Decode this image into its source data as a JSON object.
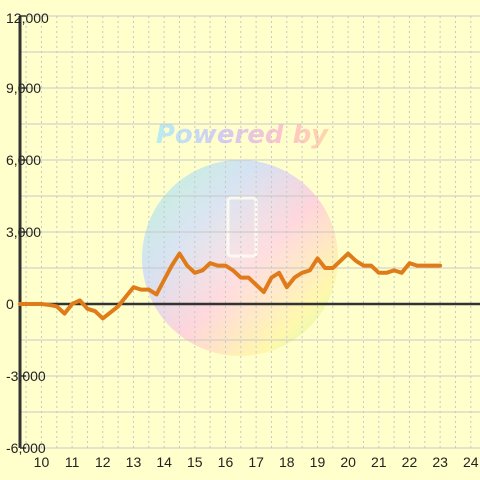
{
  "chart_data": {
    "type": "line",
    "title": "",
    "xlabel": "",
    "ylabel": "",
    "xlim": [
      9.3,
      24.3
    ],
    "ylim": [
      -6000,
      12000
    ],
    "x_ticks": [
      10,
      11,
      12,
      13,
      14,
      15,
      16,
      17,
      18,
      19,
      20,
      21,
      22,
      23,
      24
    ],
    "y_ticks": [
      -6000,
      -3000,
      0,
      3000,
      6000,
      9000,
      12000
    ],
    "x_tick_labels": [
      "10",
      "11",
      "12",
      "13",
      "14",
      "15",
      "16",
      "17",
      "18",
      "19",
      "20",
      "21",
      "22",
      "23",
      "24"
    ],
    "y_tick_labels": [
      "-6,000",
      "-3,000",
      "0",
      "3,000",
      "6,000",
      "9,000",
      "12,000"
    ],
    "grid": true,
    "legend": "none",
    "colors": {
      "background": "#ffffcc",
      "grid": "#c8c8c8",
      "axis": "#333333",
      "line": "#e07b1a"
    },
    "watermark_text": "Powered by",
    "series": [
      {
        "x": [
          9.3,
          9.5,
          10.0,
          10.3,
          10.5,
          10.75,
          11.0,
          11.25,
          11.5,
          11.75,
          12.0,
          12.5,
          12.75,
          13.0,
          13.25,
          13.5,
          13.75,
          14.0,
          14.25,
          14.5,
          14.75,
          15.0,
          15.25,
          15.5,
          15.75,
          16.0,
          16.25,
          16.5,
          16.75,
          17.0,
          17.25,
          17.5,
          17.75,
          18.0,
          18.25,
          18.5,
          18.75,
          19.0,
          19.25,
          19.5,
          19.75,
          20.0,
          20.25,
          20.5,
          20.75,
          21.0,
          21.25,
          21.5,
          21.75,
          22.0,
          22.25,
          22.5,
          23.0
        ],
        "y": [
          0,
          0,
          0,
          -50,
          -100,
          -400,
          0,
          150,
          -200,
          -300,
          -600,
          -100,
          300,
          700,
          600,
          600,
          400,
          1000,
          1600,
          2100,
          1600,
          1300,
          1400,
          1700,
          1600,
          1600,
          1400,
          1100,
          1100,
          800,
          500,
          1100,
          1300,
          700,
          1100,
          1300,
          1400,
          1900,
          1500,
          1500,
          1800,
          2100,
          1800,
          1600,
          1600,
          1300,
          1300,
          1400,
          1300,
          1700,
          1600,
          1600,
          1600
        ]
      }
    ]
  }
}
